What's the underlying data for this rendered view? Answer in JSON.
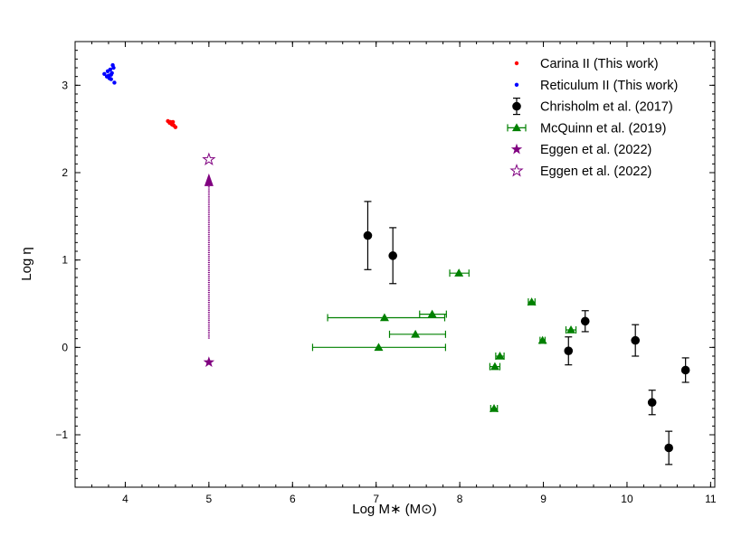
{
  "chart_data": {
    "type": "scatter",
    "xlabel": "Log M∗ (M⊙)",
    "ylabel": "Log η",
    "xlim": [
      3.4,
      11.05
    ],
    "ylim": [
      -1.6,
      3.5
    ],
    "x_ticks": [
      4,
      5,
      6,
      7,
      8,
      9,
      10,
      11
    ],
    "y_ticks": [
      -1,
      0,
      1,
      2,
      3
    ],
    "x_tick_labels": [
      "4",
      "5",
      "6",
      "7",
      "8",
      "9",
      "10",
      "11"
    ],
    "y_tick_labels": [
      "−1",
      "0",
      "1",
      "2",
      "3"
    ],
    "grid": false,
    "legend_position": "top-right",
    "series": [
      {
        "name": "Carina II (This work)",
        "marker": "small-dot",
        "color": "#ff0000",
        "points": [
          [
            4.51,
            2.59
          ],
          [
            4.53,
            2.57
          ],
          [
            4.55,
            2.56
          ],
          [
            4.57,
            2.58
          ],
          [
            4.58,
            2.54
          ],
          [
            4.6,
            2.52
          ],
          [
            4.56,
            2.55
          ],
          [
            4.54,
            2.58
          ]
        ]
      },
      {
        "name": "Reticulum II (This work)",
        "marker": "small-dot",
        "color": "#0000ff",
        "points": [
          [
            3.75,
            3.13
          ],
          [
            3.79,
            3.16
          ],
          [
            3.82,
            3.18
          ],
          [
            3.85,
            3.23
          ],
          [
            3.83,
            3.07
          ],
          [
            3.87,
            3.03
          ],
          [
            3.8,
            3.11
          ],
          [
            3.84,
            3.14
          ],
          [
            3.78,
            3.1
          ],
          [
            3.86,
            3.2
          ],
          [
            3.81,
            3.08
          ],
          [
            3.83,
            3.12
          ]
        ]
      },
      {
        "name": "Chrisholm et al. (2017)",
        "marker": "circle",
        "color": "#000000",
        "points": [
          {
            "x": 6.9,
            "y": 1.28,
            "yerr": [
              0.39,
              0.39
            ]
          },
          {
            "x": 7.2,
            "y": 1.05,
            "yerr": [
              0.32,
              0.32
            ]
          },
          {
            "x": 9.3,
            "y": -0.04,
            "yerr": [
              0.16,
              0.16
            ]
          },
          {
            "x": 9.5,
            "y": 0.3,
            "yerr": [
              0.12,
              0.12
            ]
          },
          {
            "x": 10.1,
            "y": 0.08,
            "yerr": [
              0.18,
              0.18
            ]
          },
          {
            "x": 10.3,
            "y": -0.63,
            "yerr": [
              0.14,
              0.14
            ]
          },
          {
            "x": 10.5,
            "y": -1.15,
            "yerr": [
              0.19,
              0.19
            ]
          },
          {
            "x": 10.7,
            "y": -0.26,
            "yerr": [
              0.14,
              0.14
            ]
          }
        ]
      },
      {
        "name": "McQuinn et al. (2019)",
        "marker": "triangle",
        "color": "#008000",
        "points": [
          {
            "x": 7.03,
            "y": 0.0,
            "xerr": [
              0.79,
              0.8
            ]
          },
          {
            "x": 7.1,
            "y": 0.34,
            "xerr": [
              0.68,
              0.72
            ]
          },
          {
            "x": 7.47,
            "y": 0.15,
            "xerr": [
              0.31,
              0.36
            ]
          },
          {
            "x": 7.67,
            "y": 0.38,
            "xerr": [
              0.15,
              0.17
            ]
          },
          {
            "x": 7.99,
            "y": 0.85,
            "xerr": [
              0.11,
              0.12
            ]
          },
          {
            "x": 8.42,
            "y": -0.22,
            "xerr": [
              0.06,
              0.06
            ]
          },
          {
            "x": 8.41,
            "y": -0.7,
            "xerr": [
              0.04,
              0.04
            ]
          },
          {
            "x": 8.48,
            "y": -0.1,
            "xerr": [
              0.05,
              0.05
            ]
          },
          {
            "x": 8.86,
            "y": 0.52,
            "xerr": [
              0.04,
              0.04
            ]
          },
          {
            "x": 8.99,
            "y": 0.08,
            "xerr": [
              0.03,
              0.03
            ]
          },
          {
            "x": 9.33,
            "y": 0.2,
            "xerr": [
              0.06,
              0.06
            ]
          }
        ]
      },
      {
        "name": "Eggen et al. (2022)",
        "marker": "star-filled",
        "color": "#800080",
        "points": [
          [
            5.0,
            -0.17
          ]
        ]
      },
      {
        "name": "Eggen et al. (2022)",
        "marker": "star-open",
        "color": "#800080",
        "points": [
          [
            5.0,
            2.15
          ]
        ]
      }
    ],
    "annotations": [
      {
        "type": "arrow",
        "color": "#800080",
        "style": "dotted",
        "from": [
          5.0,
          0.1
        ],
        "to": [
          5.0,
          1.95
        ]
      }
    ]
  }
}
